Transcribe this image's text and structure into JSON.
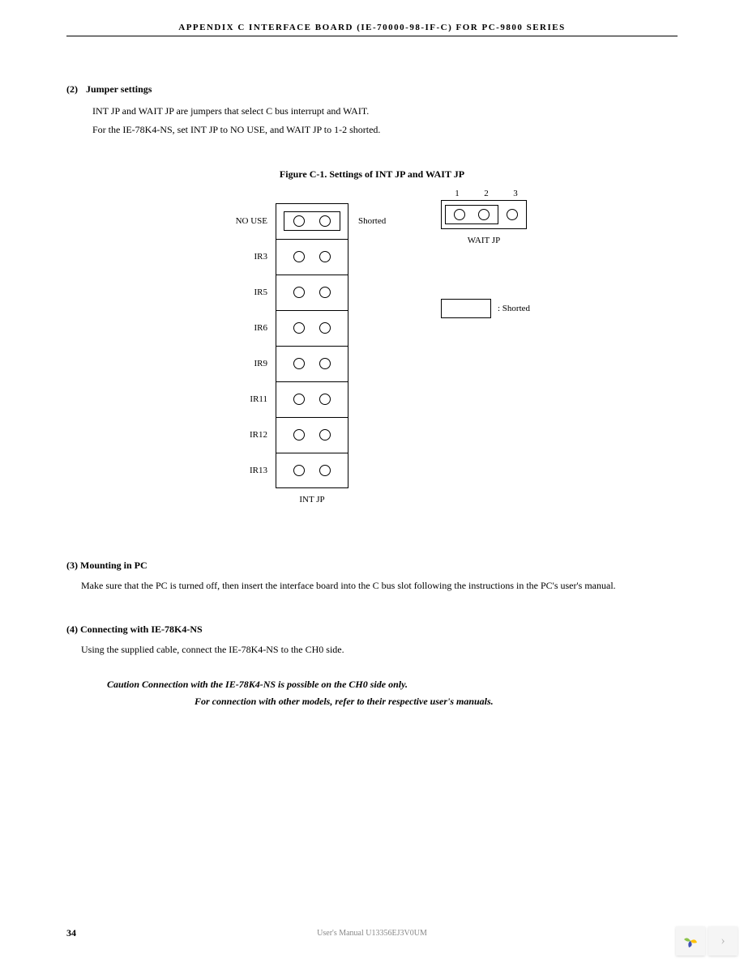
{
  "header": {
    "title": "APPENDIX C   INTERFACE  BOARD  (IE-70000-98-IF-C)  FOR  PC-9800  SERIES"
  },
  "section2": {
    "num": "(2)",
    "title": "Jumper settings",
    "line1": "INT JP and WAIT JP are jumpers that select C bus interrupt and WAIT.",
    "line2": "For the IE-78K4-NS, set INT JP to NO USE, and WAIT JP to 1-2 shorted."
  },
  "figure": {
    "caption": "Figure C-1.  Settings of INT JP and WAIT JP",
    "intjp": {
      "rows": [
        {
          "label": "NO USE",
          "shorted": true,
          "right": "Shorted"
        },
        {
          "label": "IR3",
          "shorted": false,
          "right": ""
        },
        {
          "label": "IR5",
          "shorted": false,
          "right": ""
        },
        {
          "label": "IR6",
          "shorted": false,
          "right": ""
        },
        {
          "label": "IR9",
          "shorted": false,
          "right": ""
        },
        {
          "label": "IR11",
          "shorted": false,
          "right": ""
        },
        {
          "label": "IR12",
          "shorted": false,
          "right": ""
        },
        {
          "label": "IR13",
          "shorted": false,
          "right": ""
        }
      ],
      "caption": "INT JP"
    },
    "waitjp": {
      "numbers": [
        "1",
        "2",
        "3"
      ],
      "caption": "WAIT JP"
    },
    "legend": {
      "text": ": Shorted"
    }
  },
  "section3": {
    "head": "(3) Mounting in PC",
    "body": "Make sure that the PC is turned off, then insert the interface board into the C bus slot following the instructions in the PC's user's manual."
  },
  "section4": {
    "head": "(4) Connecting with IE-78K4-NS",
    "body": "Using the supplied cable, connect the IE-78K4-NS to the CH0 side.",
    "caution1": "Caution   Connection with the IE-78K4-NS is possible on the CH0 side only.",
    "caution2": "For connection with other models, refer to their respective user's manuals."
  },
  "footer": {
    "page": "34",
    "center": "User's Manual U13356EJ3V0UM"
  },
  "colors": {
    "petal1": "#8bc34a",
    "petal2": "#ffc107",
    "petal3": "#3f51b5",
    "petal4": "#e91e63"
  }
}
